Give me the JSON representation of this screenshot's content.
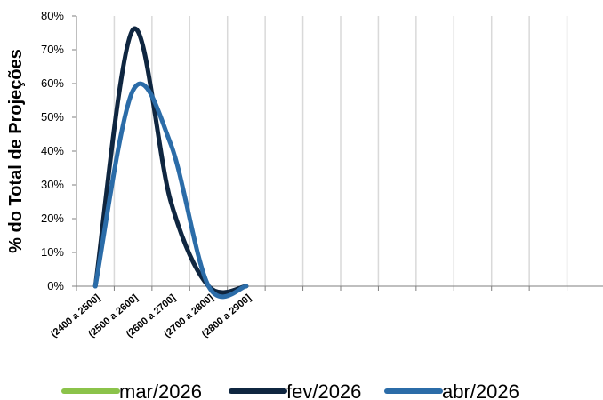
{
  "chart_data": {
    "type": "line",
    "ylabel": "% do Total de Projeções",
    "xlabel": "",
    "title": "",
    "ylim": [
      0,
      80
    ],
    "yticks": [
      "0%",
      "10%",
      "20%",
      "30%",
      "40%",
      "50%",
      "60%",
      "70%",
      "80%"
    ],
    "category_slots": 14,
    "categories": [
      "(2400 a 2500]",
      "(2500 a 2600]",
      "(2600 a 2700]",
      "(2700 a 2800]",
      "(2800 a 2900]"
    ],
    "series": [
      {
        "name": "mar/2026",
        "color": "#8BC34A",
        "values": [
          0,
          0,
          0,
          0,
          0
        ],
        "visible": false
      },
      {
        "name": "fev/2026",
        "color": "#0F2640",
        "values": [
          0,
          76,
          25,
          0,
          0
        ]
      },
      {
        "name": "abr/2026",
        "color": "#2B6CA8",
        "values": [
          0,
          58,
          42,
          0,
          0
        ]
      }
    ],
    "grid": "vertical",
    "legend": "bottom"
  }
}
